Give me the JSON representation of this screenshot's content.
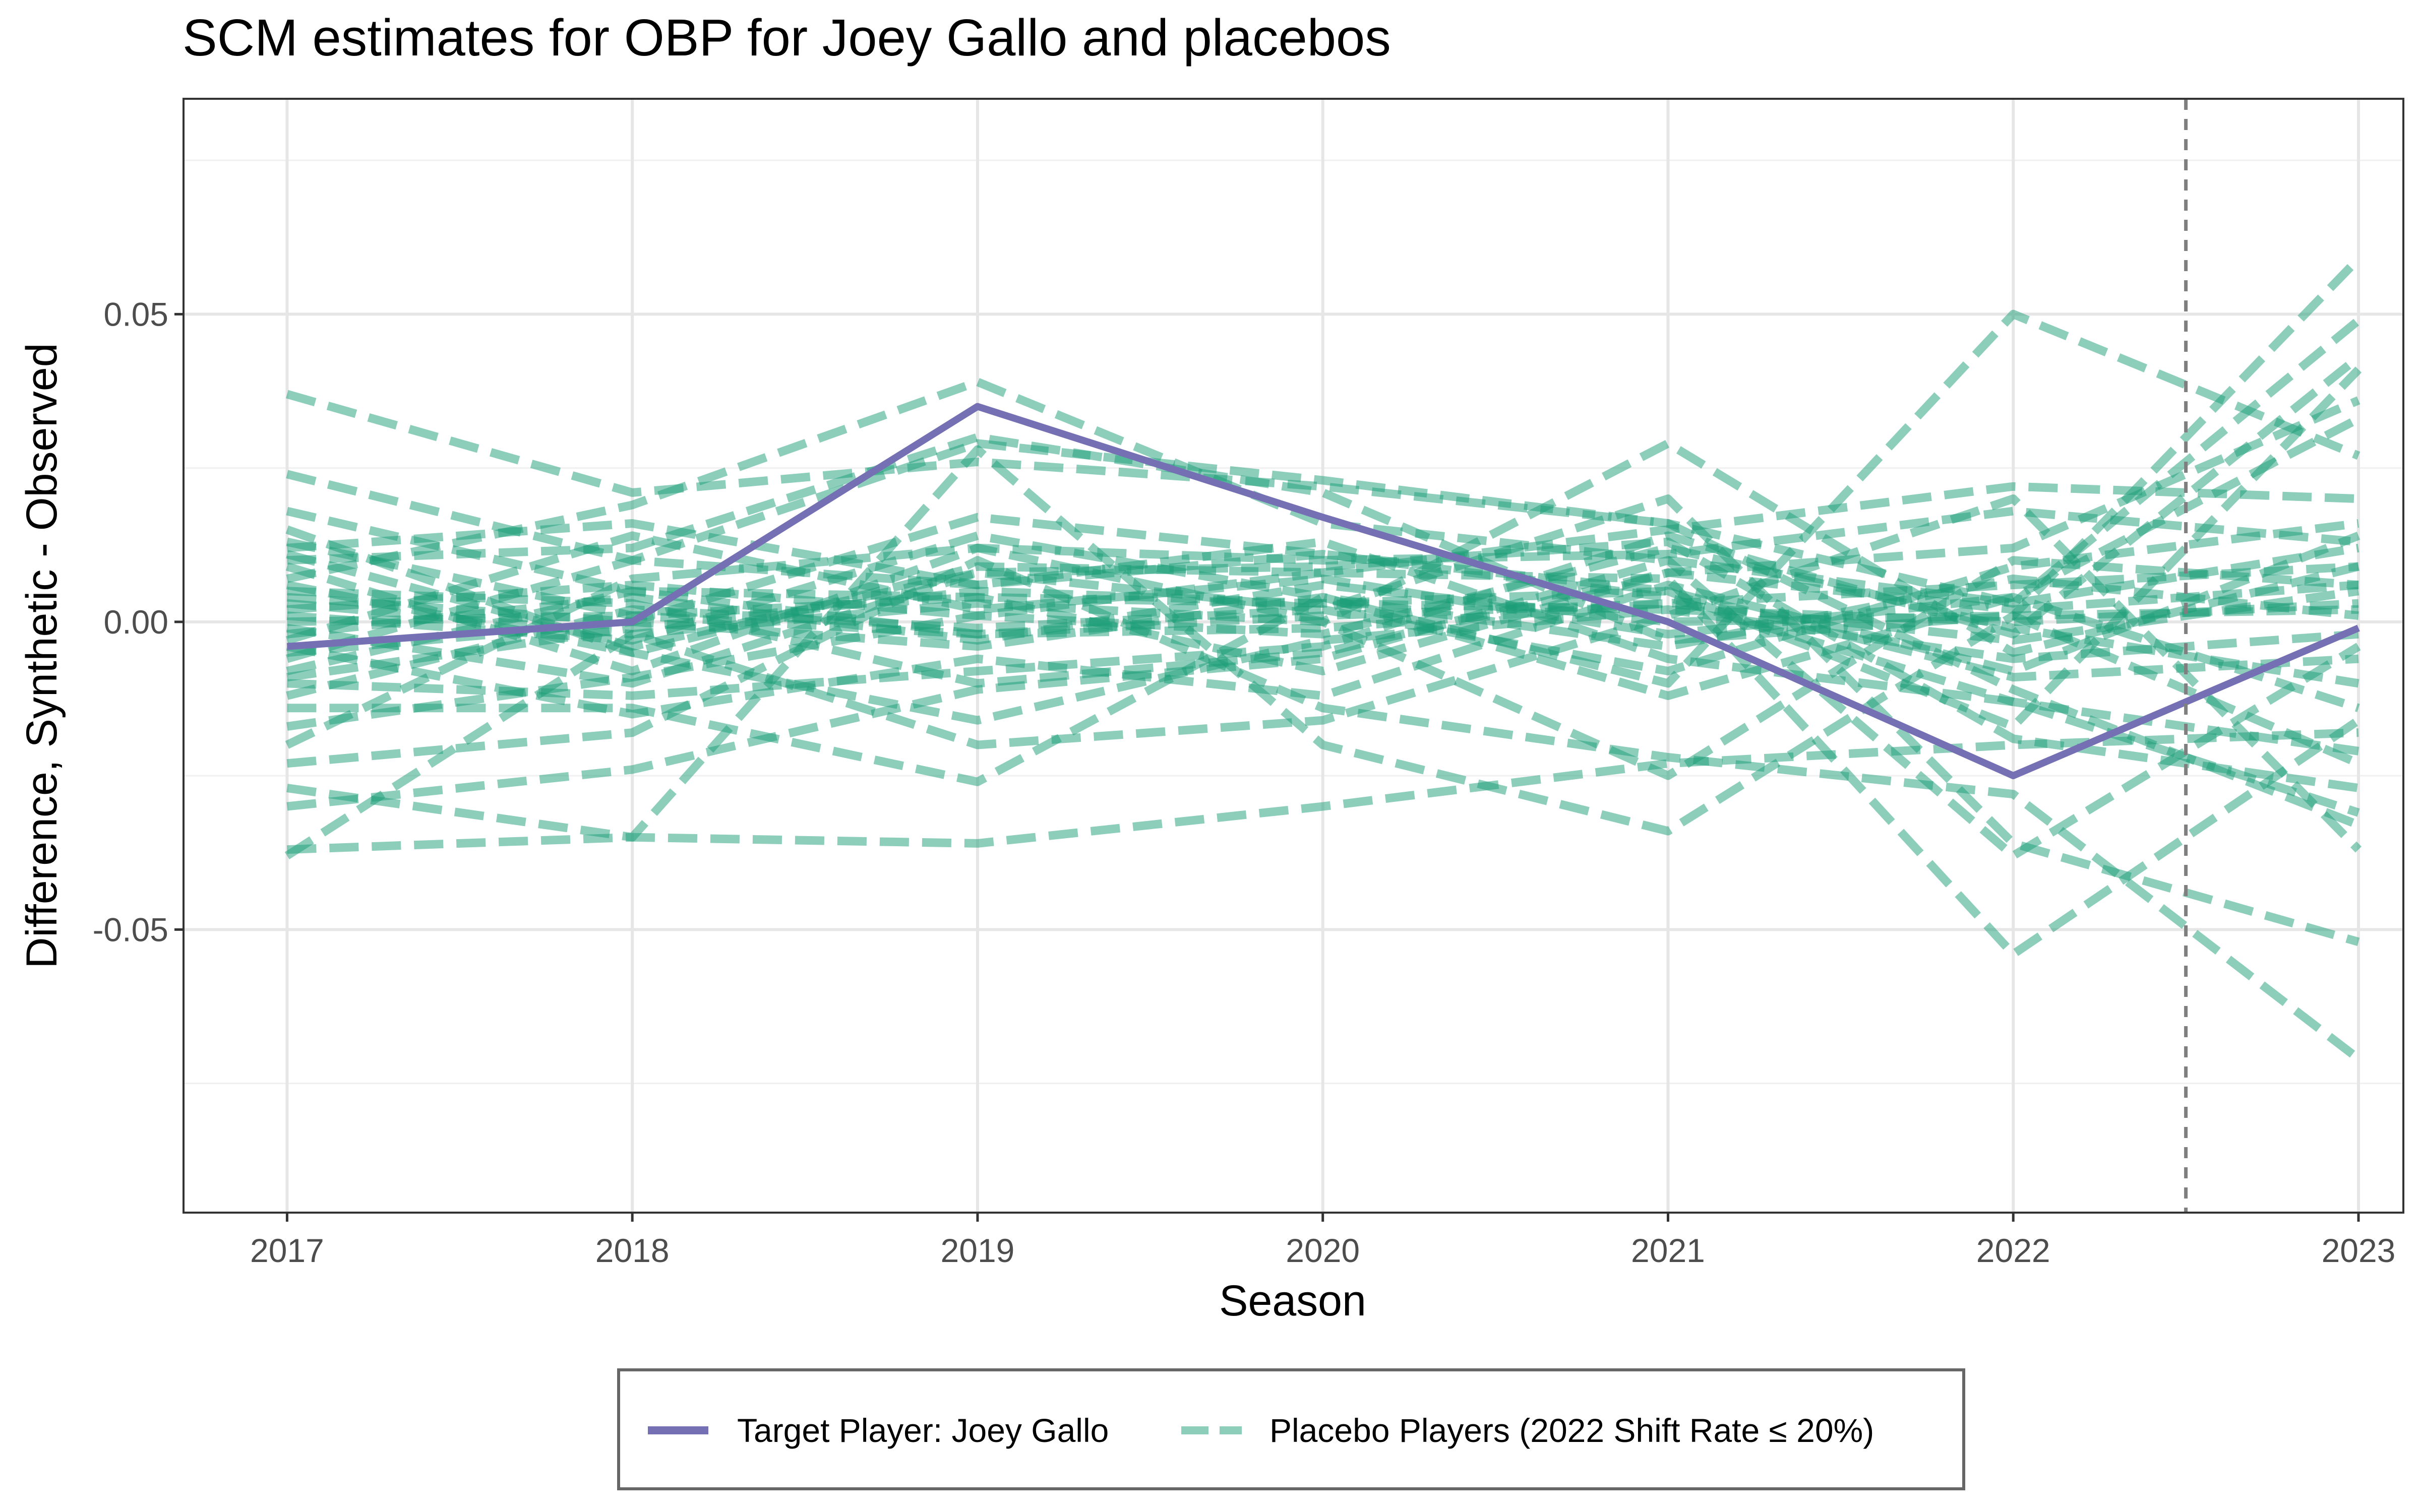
{
  "chart_data": {
    "type": "line",
    "title": "SCM estimates for OBP for Joey Gallo and placebos",
    "xlabel": "Season",
    "ylabel": "Difference, Synthetic - Observed",
    "x": [
      2017,
      2018,
      2019,
      2020,
      2021,
      2022,
      2023
    ],
    "xlim": [
      2016.7,
      2023.13
    ],
    "ylim": [
      -0.096,
      0.085
    ],
    "x_ticks": [
      {
        "value": 2017,
        "label": "2017"
      },
      {
        "value": 2018,
        "label": "2018"
      },
      {
        "value": 2019,
        "label": "2019"
      },
      {
        "value": 2020,
        "label": "2020"
      },
      {
        "value": 2021,
        "label": "2021"
      },
      {
        "value": 2022,
        "label": "2022"
      },
      {
        "value": 2023,
        "label": "2023"
      }
    ],
    "y_ticks": [
      {
        "value": 0.05,
        "label": "0.05"
      },
      {
        "value": 0.0,
        "label": "0.00"
      },
      {
        "value": -0.05,
        "label": "-0.05"
      }
    ],
    "y_minor_ticks": [
      0.075,
      0.025,
      -0.025,
      -0.075
    ],
    "grid": true,
    "treatment_line_x": 2022.5,
    "legend_position": "bottom",
    "target": {
      "name": "Target Player: Joey Gallo",
      "color": "#7570b3",
      "values": [
        -0.004,
        0.0,
        0.035,
        0.017,
        0.0,
        -0.025,
        -0.001
      ]
    },
    "placebo_legend": "Placebo Players (2022 Shift Rate ≤ 20%)",
    "placebo_color": "#1b9e77",
    "placebos": [
      [
        0.037,
        0.021,
        0.026,
        0.022,
        0.016,
        -0.011,
        -0.033
      ],
      [
        0.024,
        0.01,
        0.029,
        0.023,
        0.016,
        0.003,
        0.012
      ],
      [
        0.018,
        0.005,
        0.004,
        0.003,
        0.002,
        0.0,
        0.003
      ],
      [
        0.015,
        -0.005,
        0.009,
        0.008,
        0.015,
        0.022,
        0.02
      ],
      [
        0.012,
        0.016,
        0.006,
        0.011,
        0.004,
        -0.013,
        -0.021
      ],
      [
        0.009,
        -0.008,
        0.012,
        0.01,
        0.011,
        0.018,
        0.013
      ],
      [
        0.007,
        0.019,
        0.039,
        0.016,
        0.01,
        0.003,
        0.049
      ],
      [
        0.005,
        0.003,
        -0.01,
        -0.005,
        0.008,
        0.002,
        0.006
      ],
      [
        0.003,
        -0.002,
        0.003,
        0.0,
        0.029,
        -0.005,
        0.009
      ],
      [
        0.001,
        -0.003,
        0.014,
        0.004,
        -0.01,
        0.05,
        0.027
      ],
      [
        -0.002,
        0.004,
        -0.003,
        0.006,
        0.0,
        0.001,
        0.002
      ],
      [
        -0.004,
        -0.015,
        -0.006,
        -0.012,
        0.006,
        -0.008,
        0.014
      ],
      [
        -0.006,
        0.01,
        0.006,
        0.013,
        -0.006,
        -0.013,
        -0.031
      ],
      [
        -0.008,
        0.005,
        -0.002,
        -0.001,
        0.003,
        0.006,
        0.009
      ],
      [
        -0.01,
        -0.012,
        -0.008,
        -0.004,
        0.014,
        -0.002,
        0.043
      ],
      [
        -0.012,
        0.002,
        -0.001,
        0.002,
        0.02,
        -0.036,
        -0.052
      ],
      [
        -0.014,
        -0.014,
        -0.026,
        0.004,
        -0.012,
        0.004,
        0.033
      ],
      [
        -0.017,
        -0.009,
        0.001,
        0.008,
        0.007,
        -0.054,
        -0.016
      ],
      [
        -0.02,
        0.007,
        0.012,
        0.0,
        -0.025,
        0.01,
        0.006
      ],
      [
        -0.023,
        -0.018,
        0.01,
        -0.014,
        -0.022,
        -0.028,
        -0.071
      ],
      [
        -0.027,
        -0.035,
        0.028,
        -0.02,
        -0.034,
        0.001,
        0.059
      ],
      [
        -0.03,
        -0.024,
        -0.011,
        -0.006,
        0.01,
        -0.038,
        -0.004
      ],
      [
        -0.037,
        -0.035,
        -0.036,
        -0.03,
        -0.023,
        -0.02,
        -0.018
      ],
      [
        -0.038,
        -0.002,
        -0.02,
        -0.016,
        0.001,
        0.02,
        -0.037
      ],
      [
        0.01,
        0.012,
        0.03,
        0.021,
        -0.003,
        0.001,
        -0.023
      ],
      [
        0.004,
        0.0,
        0.017,
        0.011,
        0.005,
        -0.017,
        0.041
      ],
      [
        -0.001,
        -0.01,
        0.008,
        0.002,
        -0.008,
        0.009,
        0.016
      ],
      [
        0.002,
        0.006,
        0.001,
        -0.002,
        0.012,
        -0.001,
        -0.01
      ],
      [
        -0.005,
        0.0,
        -0.004,
        0.004,
        -0.004,
        0.007,
        0.001
      ],
      [
        0.006,
        -0.005,
        -0.016,
        -0.003,
        0.002,
        -0.006,
        -0.002
      ],
      [
        0.0,
        0.001,
        0.004,
        -0.008,
        0.008,
        0.012,
        0.036
      ],
      [
        -0.003,
        0.014,
        0.002,
        0.007,
        -0.002,
        0.004,
        -0.014
      ],
      [
        0.013,
        0.001,
        -0.002,
        0.001,
        0.003,
        -0.003,
        0.005
      ],
      [
        -0.009,
        -0.001,
        0.005,
        0.003,
        0.005,
        -0.009,
        -0.006
      ],
      [
        0.011,
        -0.004,
        0.008,
        0.009,
        0.013,
        -0.019,
        -0.027
      ]
    ]
  }
}
